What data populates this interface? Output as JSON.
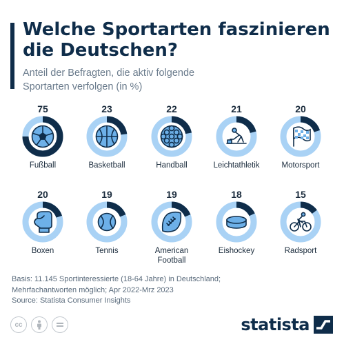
{
  "header": {
    "title": "Welche Sportarten faszinieren die Deutschen?",
    "subtitle": "Anteil der Befragten, die aktiv folgende Sportarten verfolgen (in %)"
  },
  "chart_data": {
    "type": "donut-grid",
    "title": "Welche Sportarten faszinieren die Deutschen?",
    "subtitle": "Anteil der Befragten, die aktiv folgende Sportarten verfolgen (in %)",
    "max": 100,
    "categories": [
      "Fußball",
      "Basketball",
      "Handball",
      "Leichtathletik",
      "Motorsport",
      "Boxen",
      "Tennis",
      "American Football",
      "Eishockey",
      "Radsport"
    ],
    "label_lines": [
      [
        "Fußball"
      ],
      [
        "Basketball"
      ],
      [
        "Handball"
      ],
      [
        "Leichtathletik"
      ],
      [
        "Motorsport"
      ],
      [
        "Boxen"
      ],
      [
        "Tennis"
      ],
      [
        "American",
        "Football"
      ],
      [
        "Eishockey"
      ],
      [
        "Radsport"
      ]
    ],
    "values": [
      75,
      23,
      22,
      21,
      20,
      20,
      19,
      19,
      18,
      15
    ],
    "icons": [
      "soccer-ball-icon",
      "basketball-icon",
      "handball-icon",
      "sprinter-icon",
      "checkered-flag-icon",
      "boxing-glove-icon",
      "tennis-ball-icon",
      "american-football-icon",
      "hockey-puck-icon",
      "cyclist-icon"
    ],
    "colors": {
      "filled": "#0f2d4a",
      "track": "#a9d2f5",
      "icon_fill": "#6db0e8",
      "icon_stroke": "#0f2d4a"
    }
  },
  "footnote": {
    "lines": [
      "Basis: 11.145 Sportinteressierte (18-64 Jahre) in Deutschland;",
      "Mehrfachantworten möglich; Apr 2022-Mrz 2023",
      "Source: Statista Consumer Insights"
    ]
  },
  "license_icons": [
    "cc-icon",
    "by-icon",
    "nd-icon"
  ],
  "logo": {
    "text": "statista"
  }
}
